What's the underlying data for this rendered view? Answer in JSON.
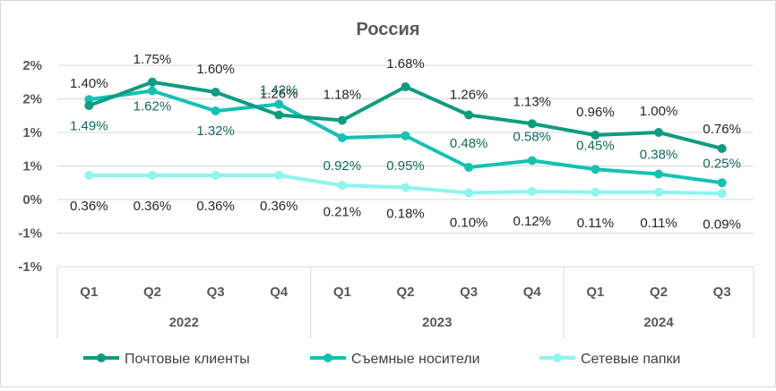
{
  "chart_data": {
    "type": "line",
    "title": "Россия",
    "xlabel": "",
    "ylabel": "",
    "ylim": [
      -1,
      2
    ],
    "y_ticks": [
      "2%",
      "2%",
      "1%",
      "1%",
      "0%",
      "-1%",
      "-1%"
    ],
    "grid": true,
    "legend_position": "bottom",
    "categories": [
      "Q1",
      "Q2",
      "Q3",
      "Q4",
      "Q1",
      "Q2",
      "Q3",
      "Q4",
      "Q1",
      "Q2",
      "Q3"
    ],
    "years": [
      {
        "label": "2022",
        "span": 4
      },
      {
        "label": "2023",
        "span": 4
      },
      {
        "label": "2024",
        "span": 3
      }
    ],
    "series": [
      {
        "name": "Почтовые клиенты",
        "color": "#0e9c80",
        "label_color": "#262626",
        "values": [
          1.4,
          1.75,
          1.6,
          1.26,
          1.18,
          1.68,
          1.26,
          1.13,
          0.96,
          1.0,
          0.76
        ],
        "labels": [
          "1.40%",
          "1.75%",
          "1.60%",
          "1.26%",
          "1.18%",
          "1.68%",
          "1.26%",
          "1.13%",
          "0.96%",
          "1.00%",
          "0.76%"
        ]
      },
      {
        "name": "Съемные носители",
        "color": "#12c2b2",
        "label_color": "#0f6b5b",
        "values": [
          1.49,
          1.62,
          1.32,
          1.42,
          0.92,
          0.95,
          0.48,
          0.58,
          0.45,
          0.38,
          0.25
        ],
        "labels": [
          "1.49%",
          "1.62%",
          "1.32%",
          "1.42%",
          "0.92%",
          "0.95%",
          "0.48%",
          "0.58%",
          "0.45%",
          "0.38%",
          "0.25%"
        ]
      },
      {
        "name": "Сетевые папки",
        "color": "#8cf5ee",
        "label_color": "#262626",
        "values": [
          0.36,
          0.36,
          0.36,
          0.36,
          0.21,
          0.18,
          0.1,
          0.12,
          0.11,
          0.11,
          0.09
        ],
        "labels": [
          "0.36%",
          "0.36%",
          "0.36%",
          "0.36%",
          "0.21%",
          "0.18%",
          "0.10%",
          "0.12%",
          "0.11%",
          "0.11%",
          "0.09%"
        ]
      }
    ]
  }
}
